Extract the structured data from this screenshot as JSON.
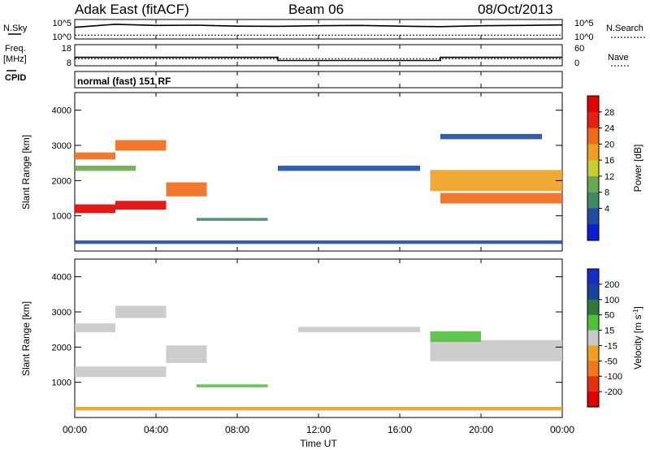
{
  "header": {
    "station": "Adak East (fitACF)",
    "beam": "Beam 06",
    "date": "08/Oct/2013"
  },
  "strip_labels": {
    "nsky": "N.Sky",
    "nsky_ticks": [
      "10^5",
      "10^0"
    ],
    "nsearch": "N.Search",
    "nsearch_ticks": [
      "10^5",
      "10^0"
    ],
    "freq_l1": "Freq.",
    "freq_l2": "[MHz]",
    "freq_ticks": [
      "18",
      "8"
    ],
    "nave": "Nave",
    "nave_ticks": [
      "60",
      "0"
    ],
    "cpid": "CPID",
    "cpid_text": "normal (fast) 151 RF"
  },
  "colorbars": {
    "power": {
      "label": "Power [dB]",
      "ticks": [
        "4",
        "8",
        "12",
        "16",
        "20",
        "24",
        "28"
      ],
      "colors": [
        "#0b1fd6",
        "#1f4ba0",
        "#3f8a63",
        "#6aa84f",
        "#c8cf2a",
        "#f0a020",
        "#f06a18",
        "#e82010",
        "#e00000"
      ]
    },
    "velocity": {
      "label": "Velocity [m s",
      "label_sup": "-1",
      "label_end": "]",
      "ticks": [
        "200",
        "100",
        "50",
        "15",
        "-15",
        "-50",
        "-100",
        "-200"
      ],
      "colors": [
        "#1a2cc8",
        "#1a40a0",
        "#2f7a3a",
        "#4fc03a",
        "#c8c8c8",
        "#f0a020",
        "#f07a18",
        "#e83010",
        "#e00000"
      ]
    }
  },
  "axes": {
    "ylabel": "Slant Range [km]",
    "xlabel": "Time UT",
    "xticks": [
      "00:00",
      "04:00",
      "08:00",
      "12:00",
      "16:00",
      "20:00",
      "00:00"
    ],
    "yticks": [
      "1000",
      "2000",
      "3000",
      "4000"
    ]
  },
  "chart_data": [
    {
      "type": "line",
      "title": "N.Sky / N.Search",
      "x": [
        0,
        2,
        4,
        6,
        8,
        10,
        12,
        14,
        16,
        18,
        20,
        22,
        24
      ],
      "series": [
        {
          "name": "N.Sky",
          "values": [
            1000,
            6000,
            3000,
            3500,
            2000,
            1800,
            2500,
            3000,
            2000,
            1500,
            2500,
            3000,
            4000
          ]
        },
        {
          "name": "N.Search",
          "values": [
            10,
            10,
            10,
            10,
            10,
            10,
            10,
            10,
            10,
            10,
            10,
            10,
            10
          ]
        }
      ],
      "xlim": [
        0,
        24
      ],
      "ylim": [
        1,
        100000
      ],
      "yscale": "log"
    },
    {
      "type": "line",
      "title": "Freq. [MHz] / Nave",
      "x": [
        0,
        10,
        10,
        18,
        18,
        24
      ],
      "series": [
        {
          "name": "Freq.",
          "values": [
            12,
            12,
            10.5,
            10.5,
            12,
            12
          ]
        },
        {
          "name": "Nave",
          "values": [
            20,
            20,
            20,
            20,
            20,
            20
          ]
        }
      ],
      "xlim": [
        0,
        24
      ],
      "ylim": [
        8,
        18
      ]
    },
    {
      "type": "heatmap",
      "title": "Power [dB]",
      "xlabel": "Time UT",
      "ylabel": "Slant Range [km]",
      "xlim": [
        0,
        24
      ],
      "ylim": [
        0,
        4500
      ],
      "zlim": [
        0,
        30
      ],
      "x_unit": "hours UT",
      "regions": [
        {
          "t_start": 0.0,
          "t_end": 2.0,
          "r_center": 1200,
          "r_width": 250,
          "value": 28
        },
        {
          "t_start": 2.0,
          "t_end": 4.5,
          "r_center": 1300,
          "r_width": 250,
          "value": 27
        },
        {
          "t_start": 4.5,
          "t_end": 6.5,
          "r_center": 1750,
          "r_width": 400,
          "value": 22
        },
        {
          "t_start": 0.0,
          "t_end": 2.0,
          "r_center": 2700,
          "r_width": 200,
          "value": 22
        },
        {
          "t_start": 2.0,
          "t_end": 4.5,
          "r_center": 3000,
          "r_width": 300,
          "value": 20
        },
        {
          "t_start": 0.0,
          "t_end": 3.0,
          "r_center": 2350,
          "r_width": 150,
          "value": 10
        },
        {
          "t_start": 6.0,
          "t_end": 9.5,
          "r_center": 900,
          "r_width": 80,
          "value": 8
        },
        {
          "t_start": 10.0,
          "t_end": 17.0,
          "r_center": 2350,
          "r_width": 150,
          "value": 5
        },
        {
          "t_start": 17.5,
          "t_end": 24.0,
          "r_center": 2000,
          "r_width": 600,
          "value": 18
        },
        {
          "t_start": 18.0,
          "t_end": 24.0,
          "r_center": 1500,
          "r_width": 300,
          "value": 20
        },
        {
          "t_start": 18.0,
          "t_end": 23.0,
          "r_center": 3250,
          "r_width": 150,
          "value": 6
        },
        {
          "t_start": 0.0,
          "t_end": 24.0,
          "r_center": 250,
          "r_width": 100,
          "value": 6
        }
      ]
    },
    {
      "type": "heatmap",
      "title": "Velocity [m s-1]",
      "xlabel": "Time UT",
      "ylabel": "Slant Range [km]",
      "xlim": [
        0,
        24
      ],
      "ylim": [
        0,
        4500
      ],
      "zlim": [
        -250,
        250
      ],
      "x_unit": "hours UT",
      "regions": [
        {
          "t_start": 0.0,
          "t_end": 4.5,
          "r_center": 1300,
          "r_width": 300,
          "value": 0
        },
        {
          "t_start": 4.5,
          "t_end": 6.5,
          "r_center": 1800,
          "r_width": 500,
          "value": 0
        },
        {
          "t_start": 0.0,
          "t_end": 2.0,
          "r_center": 2550,
          "r_width": 250,
          "value": 0
        },
        {
          "t_start": 2.0,
          "t_end": 4.5,
          "r_center": 3000,
          "r_width": 350,
          "value": 0
        },
        {
          "t_start": 6.0,
          "t_end": 9.5,
          "r_center": 900,
          "r_width": 80,
          "value": 30
        },
        {
          "t_start": 11.0,
          "t_end": 17.0,
          "r_center": 2500,
          "r_width": 150,
          "value": 0
        },
        {
          "t_start": 17.5,
          "t_end": 24.0,
          "r_center": 1900,
          "r_width": 600,
          "value": 5
        },
        {
          "t_start": 17.5,
          "t_end": 20.0,
          "r_center": 2300,
          "r_width": 300,
          "value": 40
        },
        {
          "t_start": 0.0,
          "t_end": 24.0,
          "r_center": 250,
          "r_width": 100,
          "value": -30
        }
      ]
    }
  ]
}
